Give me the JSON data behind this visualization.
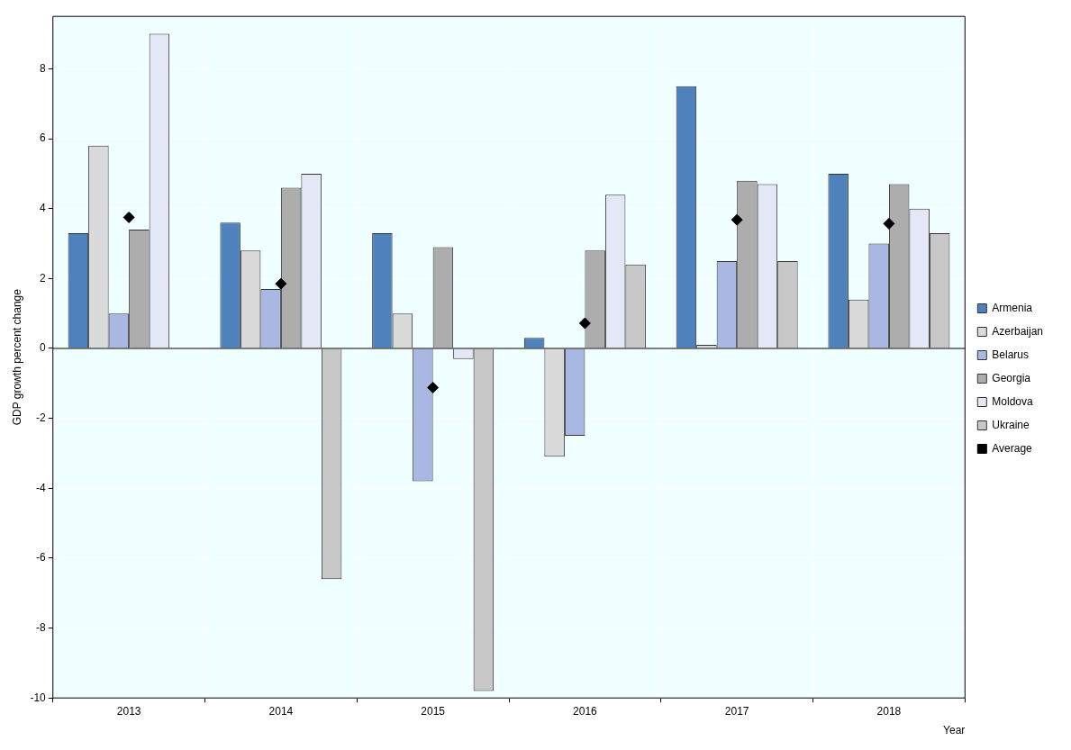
{
  "chart_data": {
    "type": "bar",
    "xlabel": "Year",
    "ylabel": "GDP growth percent change",
    "categories": [
      "2013",
      "2014",
      "2015",
      "2016",
      "2017",
      "2018"
    ],
    "series": [
      {
        "name": "Armenia",
        "color": "#4f81bd",
        "values": [
          3.3,
          3.6,
          3.3,
          0.3,
          7.5,
          5.0
        ]
      },
      {
        "name": "Azerbaijan",
        "color": "#dadada",
        "values": [
          5.8,
          2.8,
          1.0,
          -3.1,
          0.1,
          1.4
        ]
      },
      {
        "name": "Belarus",
        "color": "#a8b8e2",
        "values": [
          1.0,
          1.7,
          -3.8,
          -2.5,
          2.5,
          3.0
        ]
      },
      {
        "name": "Georgia",
        "color": "#adadad",
        "values": [
          3.4,
          4.6,
          2.9,
          2.8,
          4.8,
          4.7
        ]
      },
      {
        "name": "Moldova",
        "color": "#e4e8f6",
        "values": [
          9.0,
          5.0,
          -0.3,
          4.4,
          4.7,
          4.0
        ]
      },
      {
        "name": "Ukraine",
        "color": "#c8c8c8",
        "values": [
          0.0,
          -6.6,
          -9.8,
          2.4,
          2.5,
          3.3
        ]
      },
      {
        "name": "Average",
        "type": "scatter",
        "color": "#000000",
        "values": [
          3.75,
          1.85,
          -1.12,
          0.72,
          3.68,
          3.57
        ]
      }
    ],
    "ylim": [
      -10,
      9.5
    ],
    "yticks": [
      -10,
      -8,
      -6,
      -4,
      -2,
      0,
      2,
      4,
      6,
      8
    ],
    "grid": true,
    "legend": "right",
    "marker": "diamond"
  }
}
